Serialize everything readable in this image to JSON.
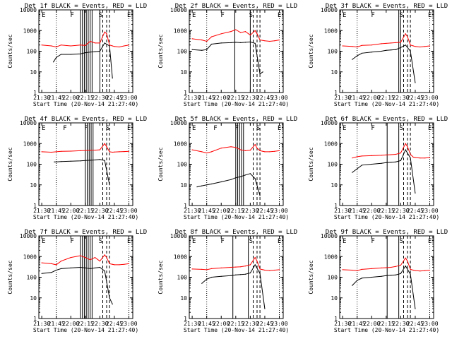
{
  "chart_data": [
    {
      "type": "line",
      "title": "Det 1f BLACK = Events, RED = LLD",
      "xlabel": "Start Time (20-Nov-14 21:27:40)",
      "ylabel": "Counts/sec",
      "ylog": true,
      "ylim": [
        1,
        10000
      ],
      "series": [
        {
          "color": "#ff0000",
          "x": [
            "21:30",
            "21:40",
            "21:45",
            "21:50",
            "22:00",
            "22:10",
            "22:15",
            "22:20",
            "22:25",
            "22:30",
            "22:35",
            "22:37",
            "22:40",
            "22:43",
            "22:45",
            "22:50",
            "22:55",
            "23:00"
          ],
          "values": [
            200,
            180,
            160,
            200,
            180,
            200,
            190,
            300,
            250,
            250,
            850,
            700,
            200,
            180,
            170,
            160,
            180,
            200
          ]
        },
        {
          "color": "#000000",
          "x": [
            "21:42",
            "21:45",
            "21:50",
            "22:00",
            "22:10",
            "22:15",
            "22:20",
            "22:25",
            "22:30",
            "22:35",
            "22:40",
            "22:43"
          ],
          "values": [
            30,
            50,
            70,
            70,
            75,
            85,
            90,
            95,
            100,
            250,
            180,
            5
          ]
        }
      ],
      "annotations": [
        "E",
        "F",
        "S",
        "E"
      ]
    },
    {
      "type": "line",
      "title": "Det 2f BLACK = Events, RED = LLD",
      "xlabel": "Start Time (20-Nov-14 21:27:40)",
      "ylabel": "Counts/sec",
      "ylog": true,
      "ylim": [
        1,
        10000
      ],
      "series": [
        {
          "color": "#ff0000",
          "x": [
            "21:30",
            "21:40",
            "21:45",
            "21:50",
            "22:00",
            "22:10",
            "22:15",
            "22:20",
            "22:25",
            "22:30",
            "22:35",
            "22:37",
            "22:40",
            "22:43",
            "22:45",
            "22:50",
            "22:55",
            "23:00"
          ],
          "values": [
            400,
            350,
            300,
            500,
            700,
            900,
            1100,
            800,
            900,
            600,
            1000,
            700,
            350,
            330,
            320,
            300,
            320,
            350
          ]
        },
        {
          "color": "#000000",
          "x": [
            "21:30",
            "21:40",
            "21:45",
            "21:50",
            "22:00",
            "22:10",
            "22:15",
            "22:20",
            "22:25",
            "22:30",
            "22:35",
            "22:40",
            "22:43"
          ],
          "values": [
            120,
            110,
            120,
            220,
            250,
            260,
            270,
            260,
            270,
            280,
            240,
            8,
            10
          ]
        }
      ],
      "annotations": [
        "E",
        "F",
        "S",
        "E"
      ]
    },
    {
      "type": "line",
      "title": "Det 3f BLACK = Events, RED = LLD",
      "xlabel": "Start Time (20-Nov-14 21:27:40)",
      "ylabel": "Counts/sec",
      "ylog": true,
      "ylim": [
        1,
        10000
      ],
      "series": [
        {
          "color": "#ff0000",
          "x": [
            "21:30",
            "21:40",
            "21:45",
            "21:50",
            "22:00",
            "22:10",
            "22:15",
            "22:20",
            "22:25",
            "22:30",
            "22:35",
            "22:37",
            "22:40",
            "22:43",
            "22:45",
            "22:50",
            "22:55",
            "23:00"
          ],
          "values": [
            180,
            170,
            160,
            190,
            200,
            230,
            240,
            250,
            260,
            270,
            700,
            500,
            200,
            180,
            170,
            160,
            170,
            180
          ]
        },
        {
          "color": "#000000",
          "x": [
            "21:40",
            "21:45",
            "21:50",
            "22:00",
            "22:10",
            "22:15",
            "22:20",
            "22:25",
            "22:30",
            "22:35",
            "22:40",
            "22:45"
          ],
          "values": [
            40,
            60,
            80,
            90,
            100,
            110,
            115,
            120,
            150,
            200,
            100,
            3
          ]
        }
      ],
      "annotations": [
        "E",
        "F",
        "S",
        "E"
      ]
    },
    {
      "type": "line",
      "title": "Det 4f BLACK = Events, RED = LLD",
      "xlabel": "Start Time (20-Nov-14 21:27:40)",
      "ylabel": "Counts/sec",
      "ylog": true,
      "ylim": [
        1,
        10000
      ],
      "series": [
        {
          "color": "#ff0000",
          "x": [
            "21:30",
            "21:40",
            "21:45",
            "21:50",
            "22:00",
            "22:10",
            "22:15",
            "22:20",
            "22:25",
            "22:30",
            "22:35",
            "22:37",
            "22:40",
            "22:43",
            "22:45",
            "22:50",
            "22:55",
            "23:00"
          ],
          "values": [
            400,
            380,
            400,
            420,
            430,
            450,
            460,
            470,
            480,
            500,
            1000,
            700,
            400,
            380,
            390,
            400,
            410,
            420
          ]
        },
        {
          "color": "#000000",
          "x": [
            "21:43",
            "21:45",
            "21:50",
            "22:00",
            "22:10",
            "22:15",
            "22:20",
            "22:25",
            "22:30",
            "22:35",
            "22:40"
          ],
          "values": [
            130,
            130,
            135,
            140,
            145,
            150,
            155,
            160,
            170,
            150,
            10
          ]
        }
      ],
      "annotations": [
        "E",
        "F",
        "F",
        "S",
        "E"
      ]
    },
    {
      "type": "line",
      "title": "Det 5f BLACK = Events, RED = LLD",
      "xlabel": "Start Time (20-Nov-14 21:27:40)",
      "ylabel": "Counts/sec",
      "ylog": true,
      "ylim": [
        1,
        10000
      ],
      "series": [
        {
          "color": "#ff0000",
          "x": [
            "21:30",
            "21:40",
            "21:45",
            "21:50",
            "22:00",
            "22:10",
            "22:15",
            "22:20",
            "22:25",
            "22:30",
            "22:35",
            "22:37",
            "22:40",
            "22:43",
            "22:45",
            "22:50",
            "22:55",
            "23:00"
          ],
          "values": [
            500,
            400,
            350,
            400,
            600,
            700,
            650,
            500,
            450,
            480,
            900,
            600,
            450,
            420,
            400,
            400,
            420,
            450
          ]
        },
        {
          "color": "#000000",
          "x": [
            "21:35",
            "21:40",
            "21:45",
            "21:50",
            "22:00",
            "22:10",
            "22:15",
            "22:20",
            "22:25",
            "22:30",
            "22:35",
            "22:40"
          ],
          "values": [
            8,
            9,
            10,
            11,
            14,
            18,
            22,
            25,
            30,
            35,
            20,
            3
          ]
        }
      ],
      "annotations": [
        "E",
        "F",
        "F",
        "S",
        "E"
      ]
    },
    {
      "type": "line",
      "title": "Det 6f BLACK = Events, RED = LLD",
      "xlabel": "Start Time (20-Nov-14 21:27:40)",
      "ylabel": "Counts/sec",
      "ylog": true,
      "ylim": [
        1,
        10000
      ],
      "series": [
        {
          "color": "#ff0000",
          "x": [
            "21:40",
            "21:45",
            "21:50",
            "22:00",
            "22:10",
            "22:15",
            "22:20",
            "22:25",
            "22:30",
            "22:35",
            "22:37",
            "22:40",
            "22:43",
            "22:45",
            "22:50",
            "22:55",
            "23:00"
          ],
          "values": [
            200,
            230,
            250,
            260,
            270,
            280,
            290,
            300,
            350,
            1000,
            700,
            300,
            220,
            210,
            200,
            200,
            210
          ]
        },
        {
          "color": "#000000",
          "x": [
            "21:40",
            "21:45",
            "21:50",
            "22:00",
            "22:10",
            "22:15",
            "22:20",
            "22:25",
            "22:30",
            "22:35",
            "22:40",
            "22:45"
          ],
          "values": [
            40,
            60,
            90,
            100,
            110,
            120,
            125,
            130,
            150,
            500,
            200,
            4
          ]
        }
      ],
      "annotations": [
        "E",
        "F",
        "S",
        "E"
      ]
    },
    {
      "type": "line",
      "title": "Det 7f BLACK = Events, RED = LLD",
      "xlabel": "Start Time (20-Nov-14 21:27:40)",
      "ylabel": "Counts/sec",
      "ylog": true,
      "ylim": [
        1,
        10000
      ],
      "series": [
        {
          "color": "#ff0000",
          "x": [
            "21:30",
            "21:40",
            "21:45",
            "21:50",
            "22:00",
            "22:10",
            "22:15",
            "22:20",
            "22:25",
            "22:30",
            "22:35",
            "22:37",
            "22:40",
            "22:43",
            "22:45",
            "22:50",
            "22:55",
            "23:00"
          ],
          "values": [
            500,
            450,
            400,
            600,
            900,
            1100,
            900,
            700,
            900,
            600,
            1200,
            900,
            450,
            420,
            400,
            400,
            420,
            450
          ]
        },
        {
          "color": "#000000",
          "x": [
            "21:30",
            "21:40",
            "21:45",
            "21:50",
            "22:00",
            "22:10",
            "22:15",
            "22:20",
            "22:25",
            "22:30",
            "22:35",
            "22:40",
            "22:43"
          ],
          "values": [
            150,
            170,
            220,
            260,
            280,
            300,
            280,
            260,
            280,
            300,
            200,
            10,
            5
          ]
        }
      ],
      "annotations": [
        "E",
        "F",
        "S",
        "E"
      ]
    },
    {
      "type": "line",
      "title": "Det 8f BLACK = Events, RED = LLD",
      "xlabel": "Start Time (20-Nov-14 21:27:40)",
      "ylabel": "Counts/sec",
      "ylog": true,
      "ylim": [
        1,
        10000
      ],
      "series": [
        {
          "color": "#ff0000",
          "x": [
            "21:30",
            "21:40",
            "21:45",
            "21:50",
            "22:00",
            "22:10",
            "22:15",
            "22:20",
            "22:25",
            "22:30",
            "22:35",
            "22:37",
            "22:40",
            "22:43",
            "22:45",
            "22:50",
            "22:55",
            "23:00"
          ],
          "values": [
            250,
            240,
            230,
            260,
            280,
            300,
            310,
            320,
            350,
            400,
            900,
            600,
            250,
            230,
            220,
            210,
            220,
            230
          ]
        },
        {
          "color": "#000000",
          "x": [
            "21:40",
            "21:45",
            "21:50",
            "22:00",
            "22:10",
            "22:15",
            "22:20",
            "22:25",
            "22:30",
            "22:35",
            "22:40",
            "22:45"
          ],
          "values": [
            50,
            80,
            100,
            110,
            120,
            130,
            135,
            140,
            160,
            400,
            150,
            3
          ]
        }
      ],
      "annotations": [
        "E",
        "F",
        "S",
        "E"
      ]
    },
    {
      "type": "line",
      "title": "Det 9f BLACK = Events, RED = LLD",
      "xlabel": "Start Time (20-Nov-14 21:27:40)",
      "ylabel": "Counts/sec",
      "ylog": true,
      "ylim": [
        1,
        10000
      ],
      "series": [
        {
          "color": "#ff0000",
          "x": [
            "21:30",
            "21:40",
            "21:45",
            "21:50",
            "22:00",
            "22:10",
            "22:15",
            "22:20",
            "22:25",
            "22:30",
            "22:35",
            "22:37",
            "22:40",
            "22:43",
            "22:45",
            "22:50",
            "22:55",
            "23:00"
          ],
          "values": [
            230,
            220,
            210,
            240,
            260,
            280,
            290,
            300,
            330,
            380,
            850,
            600,
            240,
            220,
            210,
            200,
            210,
            220
          ]
        },
        {
          "color": "#000000",
          "x": [
            "21:40",
            "21:45",
            "21:50",
            "22:00",
            "22:10",
            "22:15",
            "22:20",
            "22:25",
            "22:30",
            "22:35",
            "22:40",
            "22:45"
          ],
          "values": [
            40,
            70,
            90,
            100,
            110,
            120,
            125,
            130,
            150,
            350,
            140,
            3
          ]
        }
      ],
      "annotations": [
        "E",
        "F",
        "S",
        "E"
      ]
    }
  ],
  "xticks": [
    "21:30",
    "21:45",
    "22:00",
    "22:15",
    "22:30",
    "22:45",
    "23:00"
  ],
  "yticks": [
    "1",
    "10",
    "100",
    "1000",
    "10000"
  ],
  "event_lines": {
    "solid": [
      [
        "22:10",
        "22:12",
        "22:14",
        "22:16",
        "22:18",
        "22:20",
        "22:22",
        "22:30"
      ],
      [
        "22:14",
        "22:30"
      ],
      [
        "22:28",
        "22:30"
      ],
      [
        "22:15",
        "22:17",
        "22:19",
        "22:21",
        "22:23"
      ],
      [
        "22:15",
        "22:17",
        "22:19",
        "22:21",
        "22:23"
      ],
      [
        "22:16",
        "22:28"
      ],
      [
        "22:10",
        "22:12",
        "22:14",
        "22:16",
        "22:18",
        "22:20",
        "22:22"
      ],
      [
        "22:12",
        "22:28"
      ],
      [
        "22:16",
        "22:28"
      ]
    ],
    "dashed": [
      [
        "22:33",
        "22:37",
        "22:40"
      ],
      [
        "22:33",
        "22:37",
        "22:40"
      ],
      [
        "22:33",
        "22:37",
        "22:40"
      ],
      [
        "22:33",
        "22:37",
        "22:40"
      ],
      [
        "22:33",
        "22:37",
        "22:40"
      ],
      [
        "22:33",
        "22:37",
        "22:40"
      ],
      [
        "22:33",
        "22:37",
        "22:40"
      ],
      [
        "22:33",
        "22:37",
        "22:40"
      ],
      [
        "22:33",
        "22:37",
        "22:40"
      ]
    ],
    "dotted": [
      "21:45",
      "23:00"
    ]
  }
}
